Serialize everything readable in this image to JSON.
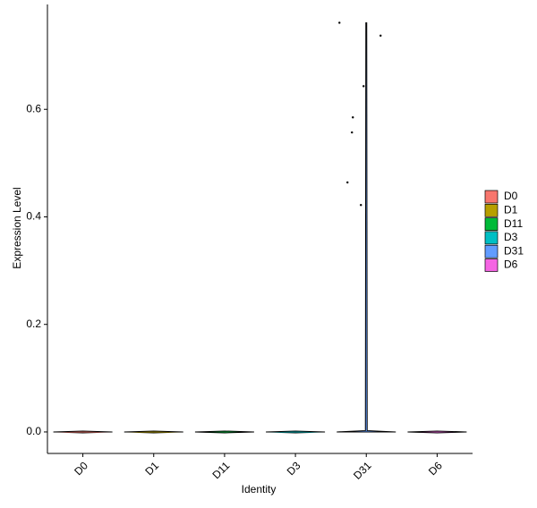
{
  "chart_data": {
    "type": "violin",
    "x_label": "Identity",
    "y_label": "Expression Level",
    "categories": [
      "D0",
      "D1",
      "D11",
      "D3",
      "D31",
      "D6"
    ],
    "colors": [
      "#F8766D",
      "#B79F00",
      "#00BA38",
      "#00BFC4",
      "#619CFF",
      "#F564E3"
    ],
    "min": [
      0,
      0,
      0,
      0,
      0,
      0
    ],
    "max": [
      0,
      0,
      0,
      0,
      0.761,
      0
    ],
    "point_values": [
      [],
      [],
      [],
      [],
      [
        0.761,
        0.737,
        0.643,
        0.585,
        0.557,
        0.464,
        0.422
      ],
      []
    ],
    "ylim": [
      -0.04,
      0.795
    ],
    "yticks": [
      {
        "value": 0,
        "label": "0.0"
      },
      0.2,
      0.4,
      0.6
    ],
    "grid": false,
    "legend": "right"
  }
}
